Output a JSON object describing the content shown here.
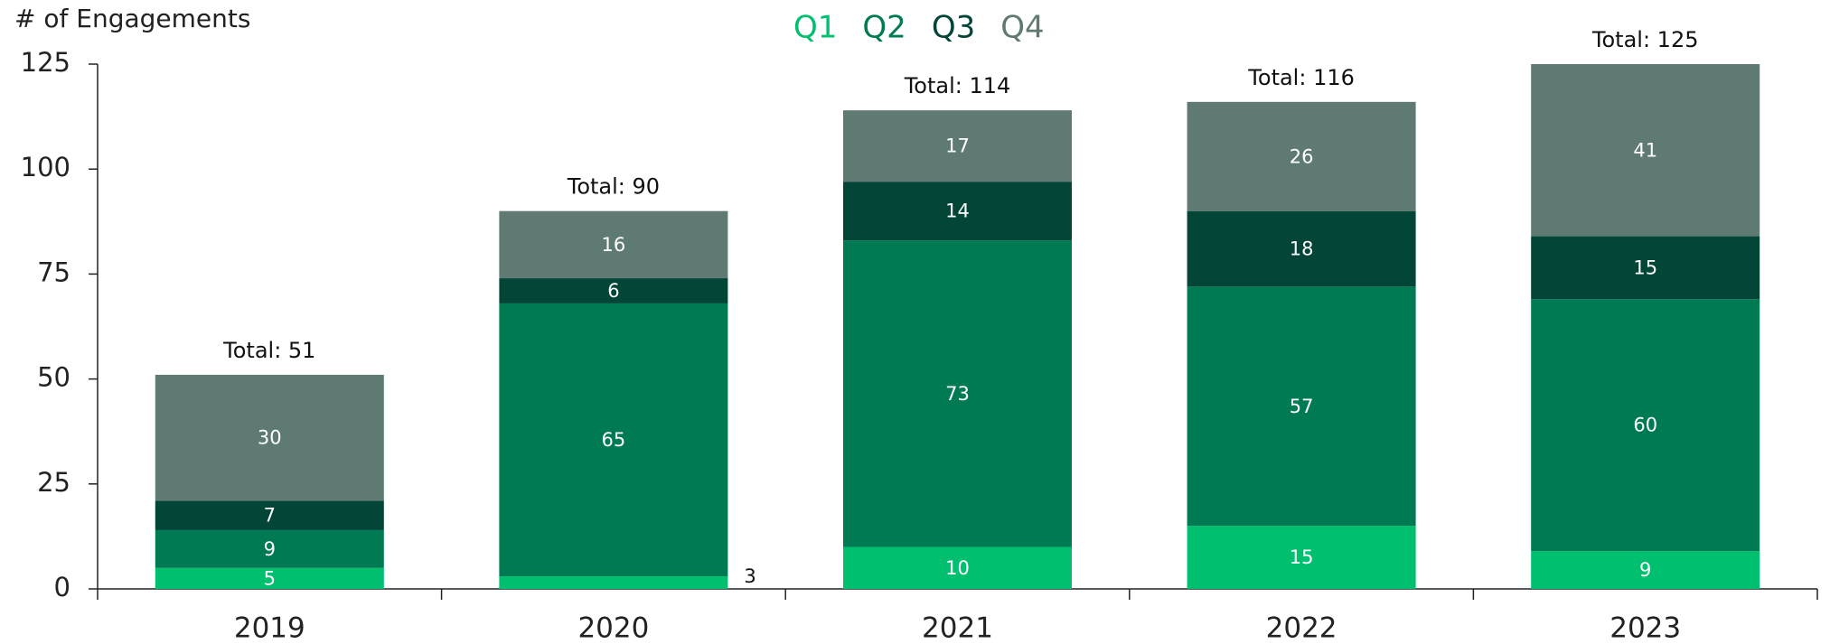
{
  "chart_data": {
    "type": "stacked_bar",
    "y_label": "# of Engagements",
    "categories": [
      "2019",
      "2020",
      "2021",
      "2022",
      "2023"
    ],
    "series": [
      {
        "name": "Q1",
        "color": "#00bf6f",
        "values": [
          5,
          3,
          10,
          15,
          9
        ]
      },
      {
        "name": "Q2",
        "color": "#007a53",
        "values": [
          9,
          65,
          73,
          57,
          60
        ]
      },
      {
        "name": "Q3",
        "color": "#034638",
        "values": [
          7,
          6,
          14,
          18,
          15
        ]
      },
      {
        "name": "Q4",
        "color": "#5e7a73",
        "values": [
          30,
          16,
          17,
          26,
          41
        ]
      }
    ],
    "total_labels": [
      "Total: 51",
      "Total: 90",
      "Total: 114",
      "Total: 116",
      "Total: 125"
    ],
    "ylim": [
      0,
      125
    ],
    "yticks": [
      0,
      25,
      50,
      75,
      100,
      125
    ],
    "grid": false,
    "legend": "top"
  }
}
